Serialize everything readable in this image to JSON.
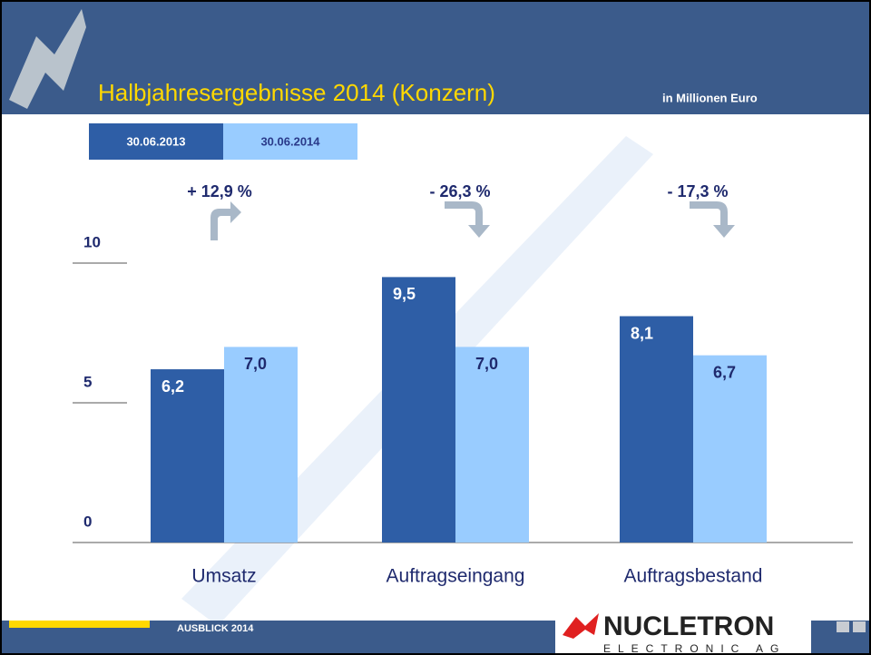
{
  "chart_data": {
    "type": "bar",
    "title": "Halbjahresergebnisse 2014 (Konzern)",
    "subtitle": "in Millionen Euro",
    "categories": [
      "Umsatz",
      "Auftragseingang",
      "Auftragsbestand"
    ],
    "series": [
      {
        "name": "30.06.2013",
        "color": "#2e5ea6",
        "values": [
          6.2,
          9.5,
          8.1
        ],
        "value_labels": [
          "6,2",
          "9,5",
          "8,1"
        ]
      },
      {
        "name": "30.06.2014",
        "color": "#99ccff",
        "values": [
          7.0,
          7.0,
          6.7
        ],
        "value_labels": [
          "7,0",
          "7,0",
          "6,7"
        ]
      }
    ],
    "annotations": [
      "+ 12,9 %",
      "- 26,3 %",
      "- 17,3 %"
    ],
    "ylim": [
      0,
      11
    ],
    "yticks": [
      0,
      5,
      10
    ]
  },
  "footer": {
    "section": "AUSBLICK  2014",
    "logo": "NUCLETRON",
    "logo_sub": "ELECTRONIC AG"
  }
}
